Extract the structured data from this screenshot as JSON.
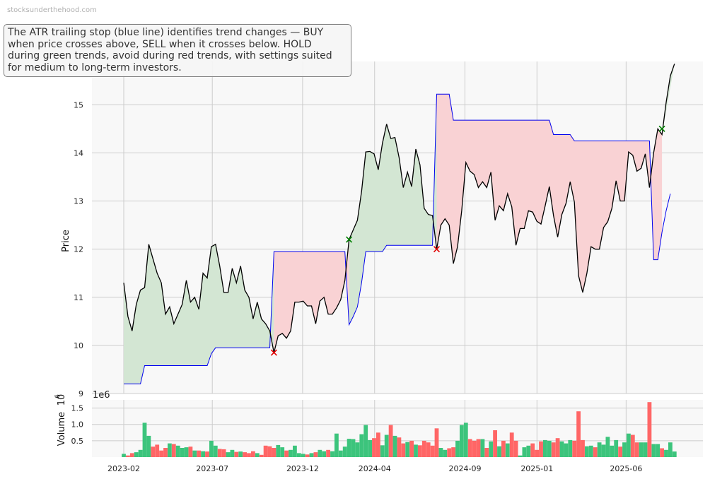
{
  "watermark": "stocksunderthehood.com",
  "annotation": "The ATR trailing stop (blue line) identifies trend changes — BUY when price crosses above, SELL when it crosses below. HOLD during green trends, avoid during red trends, with settings suited for medium to long-term investors.",
  "colors": {
    "price": "#000000",
    "stop": "#0000ee",
    "uptrend_fill": "#d3e6d3",
    "downtrend_fill": "#f9d2d4",
    "buy_marker": "#008000",
    "sell_marker": "#e00000",
    "volume_up": "#3cc47c",
    "volume_down": "#ff6666",
    "grid": "#cccccc",
    "panel_bg": "#f8f8f8"
  },
  "chart_data": [
    {
      "type": "line",
      "ylabel": "Price",
      "ylim": [
        9,
        15.9
      ],
      "yticks": [
        9,
        10,
        11,
        12,
        13,
        14,
        15
      ],
      "x_start": "2023-02-01",
      "x_step_days": 7,
      "x_end": "2025-08-22",
      "xticks": [
        "2023-02",
        "2023-07",
        "2023-12",
        "2024-04",
        "2024-09",
        "2025-01",
        "2025-06"
      ],
      "grid": true,
      "series": [
        {
          "role": "price",
          "values": [
            11.3,
            10.6,
            10.3,
            10.85,
            11.15,
            11.2,
            12.1,
            11.8,
            11.5,
            11.3,
            10.65,
            10.8,
            10.45,
            10.65,
            10.85,
            11.35,
            10.9,
            11.0,
            10.75,
            11.5,
            11.4,
            12.05,
            12.1,
            11.65,
            11.1,
            11.1,
            11.6,
            11.3,
            11.65,
            11.15,
            11.0,
            10.55,
            10.9,
            10.55,
            10.45,
            10.3,
            9.85,
            10.2,
            10.25,
            10.15,
            10.3,
            10.9,
            10.9,
            10.92,
            10.82,
            10.82,
            10.45,
            10.92,
            11.0,
            10.65,
            10.65,
            10.78,
            10.95,
            11.35,
            12.2,
            12.4,
            12.6,
            13.2,
            14.02,
            14.03,
            13.98,
            13.65,
            14.2,
            14.6,
            14.3,
            14.32,
            13.9,
            13.28,
            13.6,
            13.3,
            14.08,
            13.75,
            12.85,
            12.72,
            12.7,
            12.0,
            12.5,
            12.63,
            12.5,
            11.7,
            12.05,
            12.8,
            13.8,
            13.62,
            13.55,
            13.28,
            13.4,
            13.28,
            13.6,
            12.6,
            12.9,
            12.8,
            13.15,
            12.88,
            12.08,
            12.43,
            12.43,
            12.8,
            12.77,
            12.58,
            12.52,
            12.9,
            13.3,
            12.7,
            12.25,
            12.72,
            12.95,
            13.4,
            12.98,
            11.45,
            11.1,
            11.5,
            12.05,
            12.0,
            12.0,
            12.45,
            12.57,
            12.85,
            13.42,
            13.0,
            13.0,
            14.02,
            13.95,
            13.62,
            13.68,
            13.98,
            13.28,
            14.0,
            14.5,
            14.38,
            15.05,
            15.6,
            15.85
          ]
        },
        {
          "role": "atr-stop",
          "values": [
            9.2,
            9.2,
            9.2,
            9.2,
            9.2,
            9.58,
            9.58,
            9.58,
            9.58,
            9.58,
            9.58,
            9.58,
            9.58,
            9.58,
            9.58,
            9.58,
            9.58,
            9.58,
            9.58,
            9.58,
            9.58,
            9.83,
            9.95,
            9.95,
            9.95,
            9.95,
            9.95,
            9.95,
            9.95,
            9.95,
            9.95,
            9.95,
            9.95,
            9.95,
            9.95,
            9.95,
            11.95,
            11.95,
            11.95,
            11.95,
            11.95,
            11.95,
            11.95,
            11.95,
            11.95,
            11.95,
            11.95,
            11.95,
            11.95,
            11.95,
            11.95,
            11.95,
            11.95,
            11.95,
            10.43,
            10.6,
            10.8,
            11.3,
            11.95,
            11.95,
            11.95,
            11.95,
            11.95,
            12.08,
            12.08,
            12.08,
            12.08,
            12.08,
            12.08,
            12.08,
            12.08,
            12.08,
            12.08,
            12.08,
            12.08,
            15.22,
            15.22,
            15.22,
            15.22,
            14.68,
            14.68,
            14.68,
            14.68,
            14.68,
            14.68,
            14.68,
            14.68,
            14.68,
            14.68,
            14.68,
            14.68,
            14.68,
            14.68,
            14.68,
            14.68,
            14.68,
            14.68,
            14.68,
            14.68,
            14.68,
            14.68,
            14.68,
            14.68,
            14.38,
            14.38,
            14.38,
            14.38,
            14.38,
            14.25,
            14.25,
            14.25,
            14.25,
            14.25,
            14.25,
            14.25,
            14.25,
            14.25,
            14.25,
            14.25,
            14.25,
            14.25,
            14.25,
            14.25,
            14.25,
            14.25,
            14.25,
            14.25,
            11.78,
            11.78,
            12.35,
            12.8,
            13.15
          ]
        }
      ],
      "signals": [
        {
          "type": "sell",
          "index": 36,
          "price": 9.85
        },
        {
          "type": "buy",
          "index": 54,
          "price": 12.2
        },
        {
          "type": "sell",
          "index": 75,
          "price": 12.0
        },
        {
          "type": "buy",
          "index": 129,
          "price": 14.5
        }
      ]
    },
    {
      "type": "bar",
      "ylabel": "Volume",
      "scale_label": "1e6",
      "ylim": [
        0,
        1.75
      ],
      "yticks": [
        0.5,
        1.0,
        1.5
      ],
      "grid": true,
      "values": [
        0.1,
        0.05,
        0.12,
        0.15,
        0.22,
        1.05,
        0.65,
        0.32,
        0.38,
        0.2,
        0.28,
        0.42,
        0.4,
        0.35,
        0.28,
        0.3,
        0.32,
        0.2,
        0.2,
        0.18,
        0.17,
        0.5,
        0.35,
        0.25,
        0.24,
        0.15,
        0.22,
        0.16,
        0.17,
        0.15,
        0.12,
        0.18,
        0.12,
        0.07,
        0.35,
        0.33,
        0.28,
        0.37,
        0.3,
        0.2,
        0.22,
        0.35,
        0.12,
        0.1,
        0.08,
        0.12,
        0.15,
        0.22,
        0.18,
        0.22,
        0.18,
        0.72,
        0.2,
        0.32,
        0.56,
        0.55,
        0.45,
        0.7,
        0.98,
        0.52,
        0.58,
        0.75,
        0.36,
        0.68,
        0.98,
        0.65,
        0.6,
        0.42,
        0.46,
        0.5,
        0.38,
        0.36,
        0.5,
        0.45,
        0.35,
        0.88,
        0.28,
        0.22,
        0.27,
        0.3,
        0.5,
        0.98,
        1.05,
        0.55,
        0.5,
        0.55,
        0.55,
        0.28,
        0.48,
        0.82,
        0.33,
        0.5,
        0.42,
        0.75,
        0.5,
        0.05,
        0.3,
        0.35,
        0.42,
        0.22,
        0.48,
        0.52,
        0.5,
        0.45,
        0.58,
        0.48,
        0.42,
        0.52,
        0.5,
        1.4,
        0.52,
        0.33,
        0.35,
        0.3,
        0.45,
        0.38,
        0.62,
        0.35,
        0.52,
        0.32,
        0.45,
        0.72,
        0.68,
        0.45,
        0.45,
        0.45,
        1.68,
        0.4,
        0.4,
        0.27,
        0.22,
        0.45,
        0.17
      ]
    }
  ]
}
